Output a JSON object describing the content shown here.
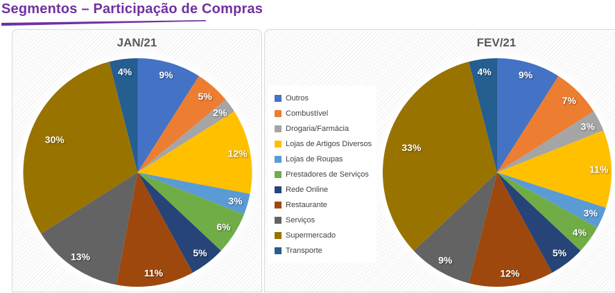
{
  "page_title": "Segmentos – Participação de Compras",
  "theme": {
    "title_color": "#7030A0",
    "title_underline_color": "#7030A0",
    "chart_title_color": "#595959",
    "legend_text_color": "#404040",
    "pie_label_color": "#FFFFFF",
    "chart_border_color": "#D9D9D9",
    "chart_area_fill": "white with light diagonal hatch stripes"
  },
  "legend": {
    "position": "left side of FEV/21 chart, vertical",
    "items": [
      {
        "label": "Outros",
        "color": "#4472C4"
      },
      {
        "label": "Combustível",
        "color": "#ED7D31"
      },
      {
        "label": "Drogaria/Farmácia",
        "color": "#A5A5A5"
      },
      {
        "label": "Lojas de Artigos Diversos",
        "color": "#FFC000"
      },
      {
        "label": "Lojas de Roupas",
        "color": "#5B9BD5"
      },
      {
        "label": "Prestadores de Serviços",
        "color": "#70AD47"
      },
      {
        "label": "Rede Online",
        "color": "#264478"
      },
      {
        "label": "Restaurante",
        "color": "#9E480E"
      },
      {
        "label": "Serviços",
        "color": "#636363"
      },
      {
        "label": "Supermercado",
        "color": "#997300"
      },
      {
        "label": "Transporte",
        "color": "#255E91"
      }
    ]
  },
  "chart_data": [
    {
      "type": "pie",
      "title": "JAN/21",
      "unit": "%",
      "start_angle_deg": 0,
      "direction": "clockwise",
      "data_labels": "percent, white bold, inside slices",
      "categories": [
        "Outros",
        "Combustível",
        "Drogaria/Farmácia",
        "Lojas de Artigos Diversos",
        "Lojas de Roupas",
        "Prestadores de Serviços",
        "Rede Online",
        "Restaurante",
        "Serviços",
        "Supermercado",
        "Transporte"
      ],
      "values": [
        9,
        5,
        2,
        12,
        3,
        6,
        5,
        11,
        13,
        30,
        4
      ],
      "colors": [
        "#4472C4",
        "#ED7D31",
        "#A5A5A5",
        "#FFC000",
        "#5B9BD5",
        "#70AD47",
        "#264478",
        "#9E480E",
        "#636363",
        "#997300",
        "#255E91"
      ]
    },
    {
      "type": "pie",
      "title": "FEV/21",
      "unit": "%",
      "start_angle_deg": 0,
      "direction": "clockwise",
      "data_labels": "percent, white bold, inside slices",
      "categories": [
        "Outros",
        "Combustível",
        "Drogaria/Farmácia",
        "Lojas de Artigos Diversos",
        "Lojas de Roupas",
        "Prestadores de Serviços",
        "Rede Online",
        "Restaurante",
        "Serviços",
        "Supermercado",
        "Transporte"
      ],
      "values": [
        9,
        7,
        3,
        11,
        3,
        4,
        5,
        12,
        9,
        33,
        4
      ],
      "colors": [
        "#4472C4",
        "#ED7D31",
        "#A5A5A5",
        "#FFC000",
        "#5B9BD5",
        "#70AD47",
        "#264478",
        "#9E480E",
        "#636363",
        "#997300",
        "#255E91"
      ]
    }
  ]
}
